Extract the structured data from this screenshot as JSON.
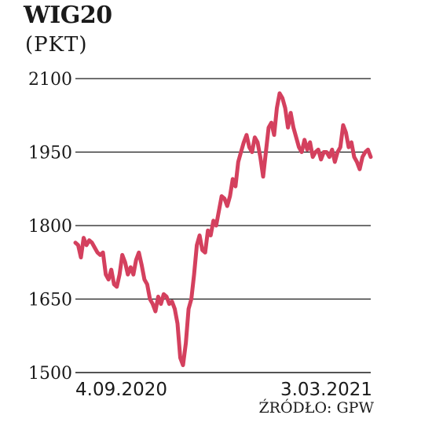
{
  "chart_data": {
    "type": "line",
    "title": "WIG20",
    "subtitle": "(PKT)",
    "source": "ŹRÓDŁO: GPW",
    "ylim": [
      1500,
      2100
    ],
    "yticks": [
      2100,
      1950,
      1800,
      1650,
      1500
    ],
    "grid": true,
    "x_start_label": "4.09.2020",
    "x_end_label": "3.03.2021",
    "line_color": "#d4405e",
    "series": [
      {
        "values": [
          1765,
          1760,
          1735,
          1775,
          1760,
          1770,
          1765,
          1755,
          1745,
          1740,
          1745,
          1700,
          1690,
          1710,
          1680,
          1675,
          1700,
          1740,
          1725,
          1700,
          1715,
          1700,
          1730,
          1745,
          1720,
          1690,
          1680,
          1650,
          1640,
          1625,
          1655,
          1640,
          1660,
          1655,
          1640,
          1645,
          1630,
          1600,
          1530,
          1515,
          1560,
          1630,
          1650,
          1700,
          1760,
          1780,
          1750,
          1745,
          1790,
          1780,
          1810,
          1800,
          1830,
          1860,
          1855,
          1840,
          1860,
          1895,
          1880,
          1930,
          1950,
          1970,
          1985,
          1960,
          1950,
          1980,
          1970,
          1940,
          1900,
          1950,
          2000,
          2010,
          1985,
          2040,
          2070,
          2060,
          2040,
          2000,
          2030,
          2000,
          1980,
          1960,
          1950,
          1975,
          1955,
          1970,
          1940,
          1950,
          1955,
          1935,
          1950,
          1950,
          1940,
          1955,
          1930,
          1950,
          1960,
          2005,
          1990,
          1960,
          1970,
          1940,
          1930,
          1915,
          1940,
          1950,
          1955,
          1940
        ]
      }
    ]
  }
}
